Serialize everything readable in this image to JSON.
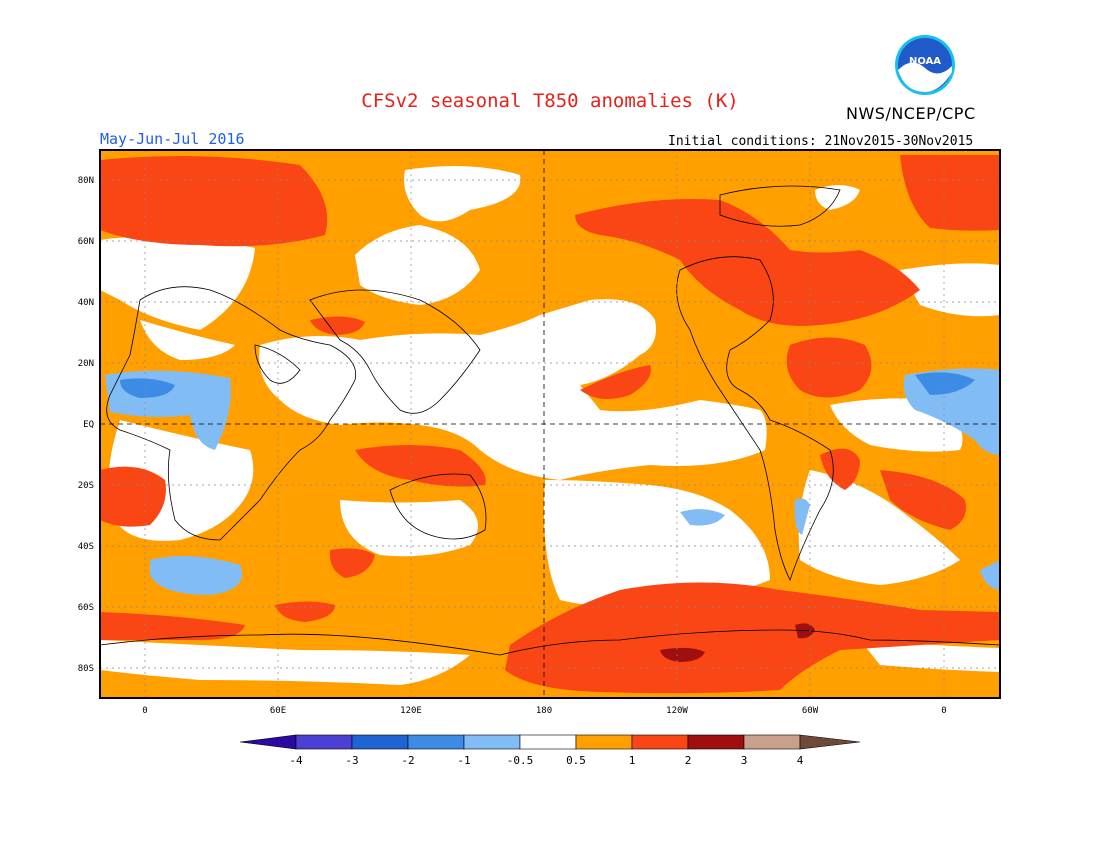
{
  "header": {
    "title": "CFSv2 seasonal T850 anomalies (K)",
    "agency": "NWS/NCEP/CPC",
    "logo_text": "NOAA",
    "period": "May-Jun-Jul 2016",
    "initial_conditions": "Initial conditions: 21Nov2015-30Nov2015"
  },
  "map": {
    "lat_labels": [
      "80N",
      "60N",
      "40N",
      "20N",
      "EQ",
      "20S",
      "40S",
      "60S",
      "80S"
    ],
    "lon_labels": [
      "0",
      "60E",
      "120E",
      "180",
      "120W",
      "60W",
      "0"
    ]
  },
  "colorbar": {
    "labels": [
      "-4",
      "-3",
      "-2",
      "-1",
      "-0.5",
      "0.5",
      "1",
      "2",
      "3",
      "4"
    ],
    "colors": [
      "#2a0aa0",
      "#4b3fd4",
      "#1e64d2",
      "#3c8ce6",
      "#82bcf5",
      "#ffffff",
      "#ffa000",
      "#fa4614",
      "#a00f0f",
      "#c9a08c",
      "#6e4a3a"
    ]
  }
}
